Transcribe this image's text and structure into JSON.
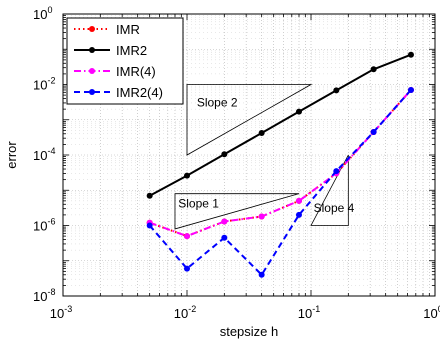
{
  "chart_data": {
    "type": "line",
    "xlabel": "stepsize h",
    "ylabel": "error",
    "xscale": "log",
    "yscale": "log",
    "xlim": [
      0.001,
      1
    ],
    "ylim": [
      1e-08,
      1
    ],
    "grid": true,
    "legend_position": "top-left",
    "x_ticks": [
      {
        "base": "10",
        "exp": "-3"
      },
      {
        "base": "10",
        "exp": "-2"
      },
      {
        "base": "10",
        "exp": "-1"
      },
      {
        "base": "10",
        "exp": "0"
      }
    ],
    "y_ticks": [
      {
        "base": "10",
        "exp": "-8"
      },
      {
        "base": "10",
        "exp": "-6"
      },
      {
        "base": "10",
        "exp": "-4"
      },
      {
        "base": "10",
        "exp": "-2"
      },
      {
        "base": "10",
        "exp": "0"
      }
    ],
    "series": [
      {
        "name": "IMR",
        "color": "#ff0000",
        "style": "dotted",
        "x": [
          0.005,
          0.01,
          0.02,
          0.04,
          0.08,
          0.16,
          0.32,
          0.64
        ],
        "y": [
          1.2e-06,
          5e-07,
          1.3e-06,
          1.8e-06,
          5e-06,
          3e-05,
          0.00045,
          0.007
        ]
      },
      {
        "name": "IMR2",
        "color": "#000000",
        "style": "solid",
        "x": [
          0.005,
          0.01,
          0.02,
          0.04,
          0.08,
          0.16,
          0.32,
          0.64
        ],
        "y": [
          7e-06,
          2.6e-05,
          0.000105,
          0.00042,
          0.0017,
          0.0068,
          0.027,
          0.07
        ]
      },
      {
        "name": "IMR(4)",
        "color": "#ff00ff",
        "style": "dashdot",
        "x": [
          0.005,
          0.01,
          0.02,
          0.04,
          0.08,
          0.16,
          0.32,
          0.64
        ],
        "y": [
          1.2e-06,
          5e-07,
          1.3e-06,
          1.8e-06,
          5e-06,
          3e-05,
          0.00045,
          0.007
        ]
      },
      {
        "name": "IMR2(4)",
        "color": "#0000ff",
        "style": "dashed",
        "x": [
          0.005,
          0.01,
          0.02,
          0.04,
          0.08,
          0.16,
          0.32,
          0.64
        ],
        "y": [
          1e-06,
          6e-08,
          4.5e-07,
          4e-08,
          2e-06,
          3.5e-05,
          0.00045,
          0.007
        ]
      }
    ],
    "slope_triangles": [
      {
        "label": "Slope 2",
        "points": [
          [
            0.01,
            0.01
          ],
          [
            0.1,
            0.01
          ],
          [
            0.01,
            0.0001
          ]
        ]
      },
      {
        "label": "Slope 1",
        "points": [
          [
            0.008,
            8e-06
          ],
          [
            0.08,
            8e-06
          ],
          [
            0.008,
            8e-07
          ]
        ]
      },
      {
        "label": "Slope 4",
        "points": [
          [
            0.2,
            0.0001
          ],
          [
            0.2,
            1e-06
          ],
          [
            0.1,
            1e-06
          ]
        ]
      }
    ]
  }
}
